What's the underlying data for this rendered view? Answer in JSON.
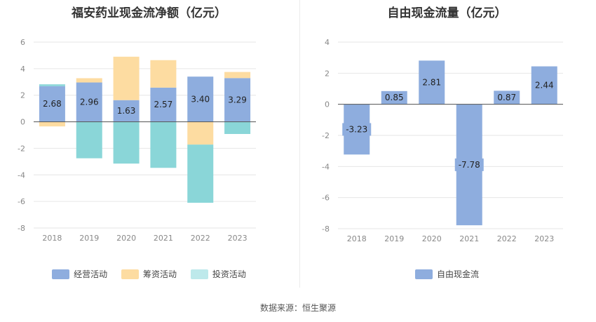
{
  "source": "数据来源：恒生聚源",
  "chart_data": [
    {
      "type": "bar",
      "stacked": true,
      "title": "福安药业现金流净额（亿元）",
      "categories": [
        "2018",
        "2019",
        "2020",
        "2021",
        "2022",
        "2023"
      ],
      "ylim": [
        -8,
        6
      ],
      "yticks": [
        6,
        4,
        2,
        0,
        -2,
        -4,
        -6,
        -8
      ],
      "grid": true,
      "legend": "bottom",
      "series": [
        {
          "name": "经营活动",
          "color": "#8eadde",
          "values": [
            2.68,
            2.96,
            1.63,
            2.57,
            3.4,
            3.29
          ],
          "labels": [
            "2.68",
            "2.96",
            "1.63",
            "2.57",
            "3.40",
            "3.29"
          ]
        },
        {
          "name": "筹资活动",
          "color": "#fddca1",
          "values": [
            -0.35,
            0.32,
            3.27,
            2.07,
            -1.72,
            0.46
          ]
        },
        {
          "name": "投资活动",
          "color": "#8ad6d8",
          "values": [
            0.14,
            -2.75,
            -3.15,
            -3.47,
            -4.38,
            -0.92
          ]
        }
      ]
    },
    {
      "type": "bar",
      "title": "自由现金流量（亿元）",
      "categories": [
        "2018",
        "2019",
        "2020",
        "2021",
        "2022",
        "2023"
      ],
      "ylim": [
        -8,
        4
      ],
      "yticks": [
        4,
        2,
        0,
        -2,
        -4,
        -6,
        -8
      ],
      "grid": true,
      "legend": "bottom",
      "series": [
        {
          "name": "自由现金流",
          "color": "#8eadde",
          "values": [
            -3.23,
            0.85,
            2.81,
            -7.78,
            0.87,
            2.44
          ],
          "labels": [
            "-3.23",
            "0.85",
            "2.81",
            "-7.78",
            "0.87",
            "2.44"
          ]
        }
      ]
    }
  ]
}
